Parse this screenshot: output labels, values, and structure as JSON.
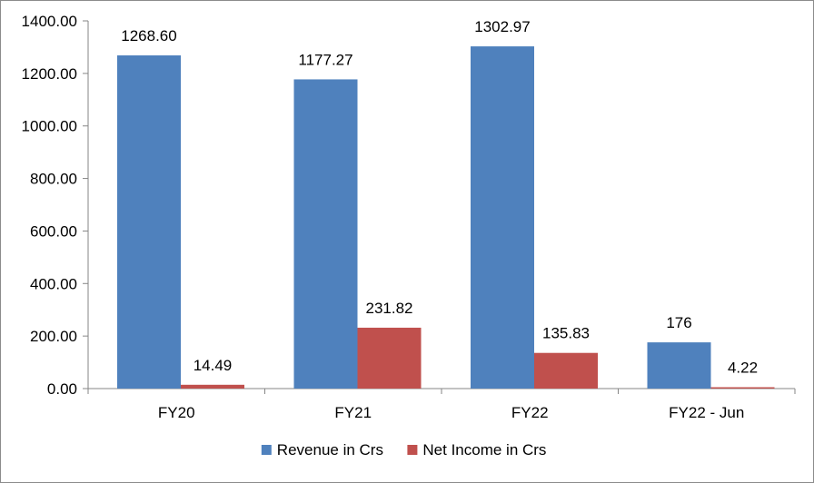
{
  "chart_data": {
    "type": "bar",
    "title": "",
    "xlabel": "",
    "ylabel": "",
    "ylim": [
      0,
      1400
    ],
    "y_ticks": [
      "0.00",
      "200.00",
      "400.00",
      "600.00",
      "800.00",
      "1000.00",
      "1200.00",
      "1400.00"
    ],
    "y_tick_values": [
      0,
      200,
      400,
      600,
      800,
      1000,
      1200,
      1400
    ],
    "grid": false,
    "legend_position": "bottom",
    "categories": [
      "FY20",
      "FY21",
      "FY22",
      "FY22 - Jun"
    ],
    "series": [
      {
        "name": "Revenue in Crs",
        "color": "#4f81bd",
        "values": [
          1268.6,
          1177.27,
          1302.97,
          176
        ],
        "labels": [
          "1268.60",
          "1177.27",
          "1302.97",
          "176"
        ]
      },
      {
        "name": "Net Income in Crs",
        "color": "#c0504d",
        "values": [
          14.49,
          231.82,
          135.83,
          4.22
        ],
        "labels": [
          "14.49",
          "231.82",
          "135.83",
          "4.22"
        ]
      }
    ]
  }
}
